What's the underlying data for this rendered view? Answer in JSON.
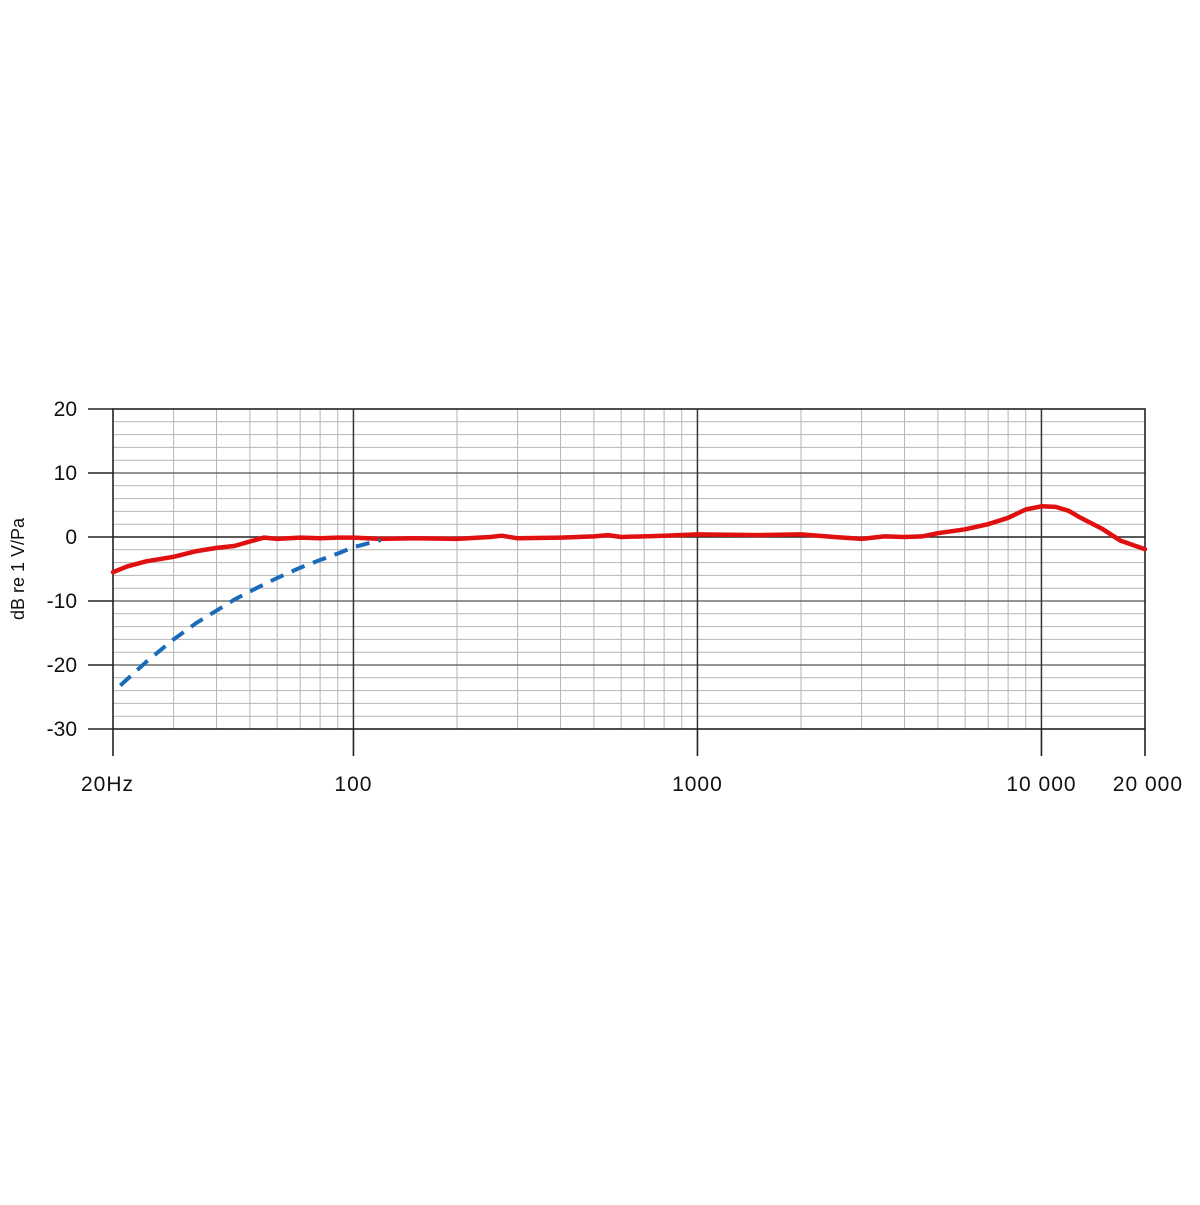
{
  "chart_data": {
    "type": "line",
    "title": "",
    "xlabel": "",
    "ylabel": "dB re 1 V/Pa",
    "x_scale": "log",
    "xlim": [
      20,
      20000
    ],
    "ylim": [
      -30,
      20
    ],
    "grid": true,
    "x_major_ticks": [
      {
        "value": 20,
        "label": "20Hz"
      },
      {
        "value": 100,
        "label": "100"
      },
      {
        "value": 1000,
        "label": "1000"
      },
      {
        "value": 10000,
        "label": "10 000"
      },
      {
        "value": 20000,
        "label": "20 000"
      }
    ],
    "y_major_ticks": [
      {
        "value": 20,
        "label": "20"
      },
      {
        "value": 10,
        "label": "10"
      },
      {
        "value": 0,
        "label": "0"
      },
      {
        "value": -10,
        "label": "-10"
      },
      {
        "value": -20,
        "label": "-20"
      },
      {
        "value": -30,
        "label": "-30"
      }
    ],
    "series": [
      {
        "style": "solid",
        "color": "#e01010",
        "x": [
          20,
          22,
          25,
          30,
          35,
          40,
          45,
          50,
          55,
          60,
          65,
          70,
          80,
          90,
          100,
          120,
          150,
          200,
          250,
          270,
          300,
          400,
          500,
          550,
          600,
          800,
          1000,
          1500,
          2000,
          2500,
          3000,
          3500,
          4000,
          4500,
          5000,
          6000,
          7000,
          8000,
          9000,
          10000,
          11000,
          12000,
          13000,
          15000,
          17000,
          20000
        ],
        "y": [
          -5.5,
          -4.6,
          -3.8,
          -3.1,
          -2.2,
          -1.7,
          -1.4,
          -0.7,
          -0.1,
          -0.3,
          -0.2,
          -0.1,
          -0.2,
          -0.1,
          -0.1,
          -0.3,
          -0.2,
          -0.3,
          0,
          0.2,
          -0.2,
          -0.1,
          0.1,
          0.3,
          0,
          0.2,
          0.4,
          0.3,
          0.4,
          0,
          -0.3,
          0.1,
          0,
          0.1,
          0.6,
          1.2,
          2.0,
          3.0,
          4.3,
          4.8,
          4.7,
          4.1,
          3.0,
          1.3,
          -0.6,
          -1.9
        ]
      },
      {
        "style": "dashed",
        "color": "#1a6bb8",
        "x": [
          21,
          25,
          30,
          35,
          40,
          45,
          50,
          60,
          70,
          80,
          90,
          100,
          110,
          120
        ],
        "y": [
          -23.2,
          -19.5,
          -16.0,
          -13.4,
          -11.5,
          -9.8,
          -8.5,
          -6.4,
          -4.8,
          -3.6,
          -2.6,
          -1.6,
          -1.0,
          -0.5
        ]
      }
    ]
  }
}
